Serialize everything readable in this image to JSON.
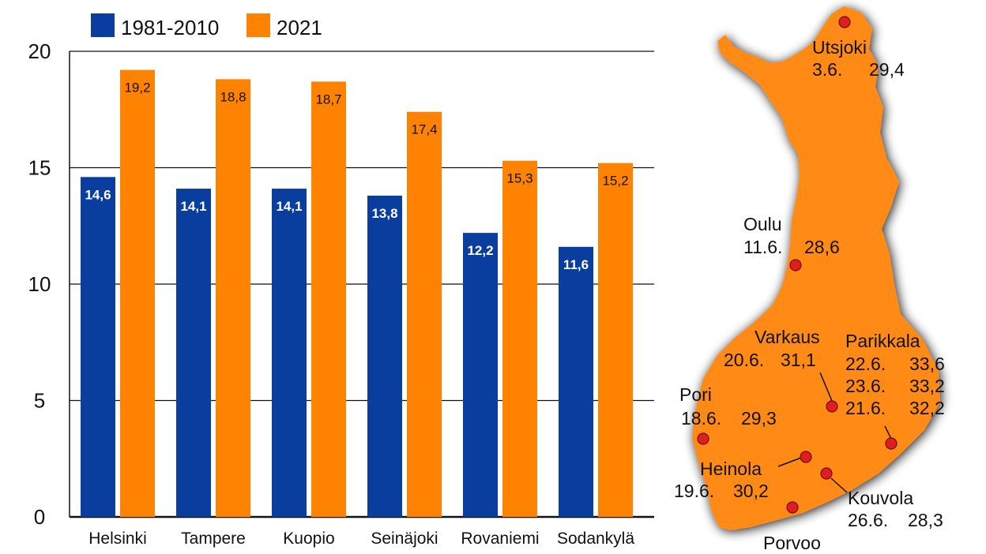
{
  "chart_data": {
    "type": "bar",
    "categories": [
      "Helsinki",
      "Tampere",
      "Kuopio",
      "Seinäjoki",
      "Rovaniemi",
      "Sodankylä"
    ],
    "series": [
      {
        "name": "1981-2010",
        "values": [
          14.6,
          14.1,
          14.1,
          13.8,
          12.2,
          11.6
        ],
        "labels": [
          "14,6",
          "14,1",
          "14,1",
          "13,8",
          "12,2",
          "11,6"
        ],
        "color": "#0a3e9e"
      },
      {
        "name": "2021",
        "values": [
          19.2,
          18.8,
          18.7,
          17.4,
          15.3,
          15.2
        ],
        "labels": [
          "19,2",
          "18,8",
          "18,7",
          "17,4",
          "15,3",
          "15,2"
        ],
        "color": "#ff8200"
      }
    ],
    "yticks": [
      "0",
      "5",
      "10",
      "15",
      "20"
    ],
    "ylim": [
      0,
      20
    ],
    "grid": true,
    "legend_position": "top-left"
  },
  "map": {
    "fill_color": "#ff8a14",
    "marker_color": "#e01e1e",
    "cities": [
      {
        "name": "Utsjoki",
        "lines": [
          "3.6.",
          "29,4"
        ]
      },
      {
        "name": "Oulu",
        "lines": [
          "11.6.",
          "28,6"
        ]
      },
      {
        "name": "Varkaus",
        "lines": [
          "20.6.",
          "31,1"
        ]
      },
      {
        "name": "Parikkala",
        "lines": [
          "22.6.",
          "33,6",
          "23.6.",
          "33,2",
          "21.6.",
          "32,2"
        ]
      },
      {
        "name": "Pori",
        "lines": [
          "18.6.",
          "29,3"
        ]
      },
      {
        "name": "Heinola",
        "lines": [
          "19.6.",
          "30,2"
        ]
      },
      {
        "name": "Kouvola",
        "lines": [
          "26.6.",
          "28,3"
        ]
      },
      {
        "name": "Porvoo",
        "lines": []
      }
    ]
  }
}
